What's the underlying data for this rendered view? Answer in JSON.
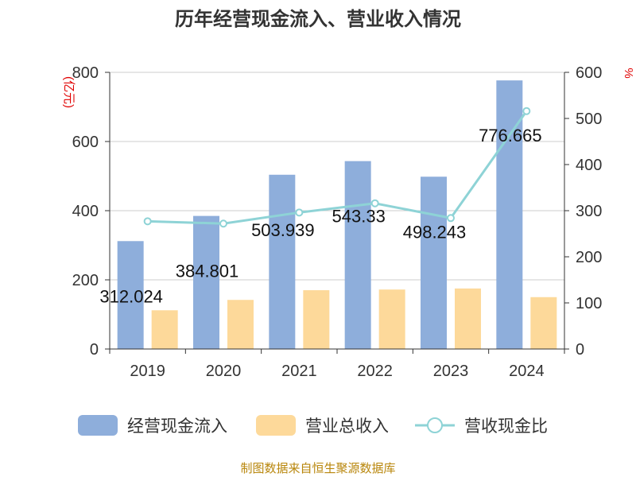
{
  "chart_data": {
    "type": "bar",
    "title": "历年经营现金流入、营业收入情况",
    "left_unit": "(亿元)",
    "right_unit": "%",
    "categories": [
      "2019",
      "2020",
      "2021",
      "2022",
      "2023",
      "2024"
    ],
    "left_axis": {
      "ylim": [
        0,
        800
      ],
      "ticks": [
        "0",
        "200",
        "400",
        "600",
        "800"
      ]
    },
    "right_axis": {
      "ylim": [
        0,
        600
      ],
      "ticks": [
        "0",
        "100",
        "200",
        "300",
        "400",
        "500",
        "600"
      ]
    },
    "series": [
      {
        "name": "经营现金流入",
        "type": "bar",
        "axis": "left",
        "color": "#8eaedb",
        "values": [
          312.024,
          384.801,
          503.939,
          543.33,
          498.243,
          776.665
        ],
        "labels": [
          "312.024",
          "384.801",
          "503.939",
          "543.33",
          "498.243",
          "776.665"
        ]
      },
      {
        "name": "营业总收入",
        "type": "bar",
        "axis": "left",
        "color": "#fdd99a",
        "values": [
          112,
          142,
          170,
          172,
          175,
          150
        ]
      },
      {
        "name": "营收现金比",
        "type": "line",
        "axis": "right",
        "color": "#8ed3d6",
        "values": [
          277,
          272,
          296,
          316,
          284,
          516
        ]
      }
    ],
    "grid": true,
    "legend_position": "bottom"
  },
  "source_note": "制图数据来自恒生聚源数据库"
}
